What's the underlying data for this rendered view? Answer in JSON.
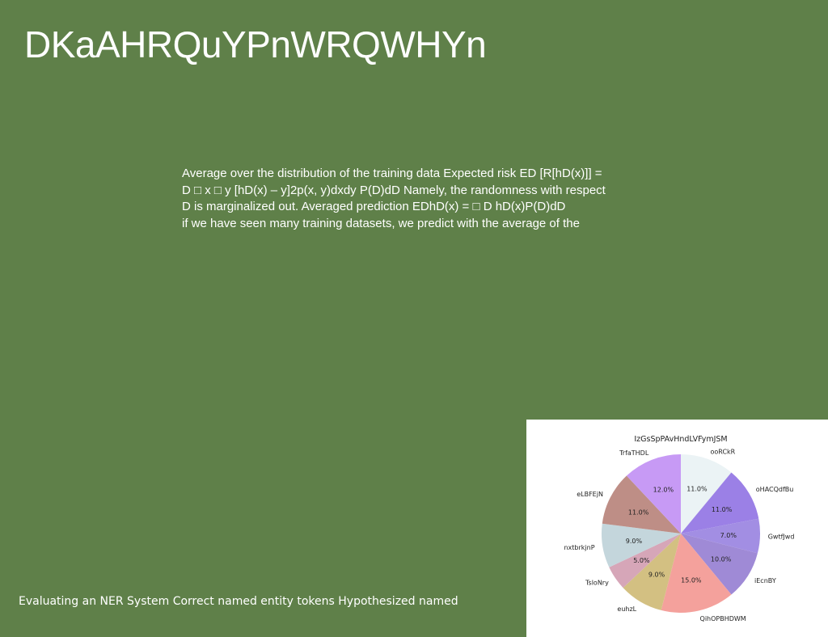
{
  "slide": {
    "title": "DKaAHRQuYPnWRQWHYn",
    "body_lines": [
      "Average over the distribution of the training data Expected risk ED [R[hD(x)]] =",
      "D □ x □ y [hD(x) – y]2p(x, y)dxdy P(D)dD Namely, the randomness with respect",
      "D is marginalized out. Averaged prediction EDhD(x) = □ D hD(x)P(D)dD",
      "if we have seen many training datasets, we predict with the average of the"
    ],
    "footer": "Evaluating an NER System Correct named entity tokens Hypothesized named"
  },
  "chart_data": {
    "type": "pie",
    "title": "IzGsSpPAvHndLVFymJSM",
    "start_angle_deg": 90,
    "direction": "clockwise",
    "slices": [
      {
        "label": "ooRCkR",
        "value": 11.0,
        "pct_label": "11.0%",
        "color": "#ebf3f5"
      },
      {
        "label": "oHACQdfBu",
        "value": 11.0,
        "pct_label": "11.0%",
        "color": "#9b80e6"
      },
      {
        "label": "GwtfJwd",
        "value": 7.0,
        "pct_label": "7.0%",
        "color": "#a28ee3"
      },
      {
        "label": "iEcnBY",
        "value": 10.0,
        "pct_label": "10.0%",
        "color": "#9f8ad6"
      },
      {
        "label": "QihOPBHDWM",
        "value": 15.0,
        "pct_label": "15.0%",
        "color": "#f4a19c"
      },
      {
        "label": "euhzL",
        "value": 9.0,
        "pct_label": "9.0%",
        "color": "#d3c082"
      },
      {
        "label": "TsloNry",
        "value": 5.0,
        "pct_label": "5.0%",
        "color": "#d6a6b8"
      },
      {
        "label": "nxtbrkjnP",
        "value": 9.0,
        "pct_label": "9.0%",
        "color": "#c4d6dc"
      },
      {
        "label": "eLBFEjN",
        "value": 11.0,
        "pct_label": "11.0%",
        "color": "#be8e86"
      },
      {
        "label": "TrfaTHDL",
        "value": 12.0,
        "pct_label": "12.0%",
        "color": "#c79af5"
      }
    ]
  }
}
